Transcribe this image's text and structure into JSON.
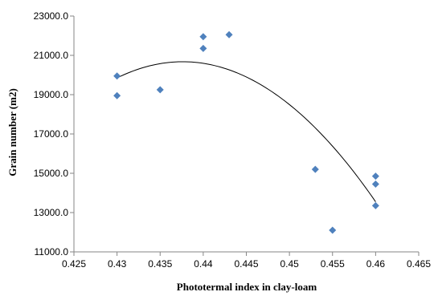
{
  "chart_data": {
    "type": "scatter",
    "title": "",
    "xlabel": "Phototermal index in clay-loam",
    "ylabel": "Grain number (m2)",
    "xlim": [
      0.425,
      0.465
    ],
    "ylim": [
      11000,
      23000
    ],
    "x_ticks": [
      "0.425",
      "0.43",
      "0.435",
      "0.44",
      "0.445",
      "0.45",
      "0.455",
      "0.46",
      "0.465"
    ],
    "x_tick_values": [
      0.425,
      0.43,
      0.435,
      0.44,
      0.445,
      0.45,
      0.455,
      0.46,
      0.465
    ],
    "y_ticks": [
      "11000.0",
      "13000.0",
      "15000.0",
      "17000.0",
      "19000.0",
      "21000.0",
      "23000.0"
    ],
    "y_tick_values": [
      11000,
      13000,
      15000,
      17000,
      19000,
      21000,
      23000
    ],
    "grid": false,
    "legend": "none",
    "marker": "diamond",
    "marker_color": "#4f81bd",
    "trendline_color": "#000000",
    "points": [
      {
        "x": 0.43,
        "y": 19950
      },
      {
        "x": 0.43,
        "y": 18950
      },
      {
        "x": 0.435,
        "y": 19250
      },
      {
        "x": 0.44,
        "y": 21950
      },
      {
        "x": 0.44,
        "y": 21350
      },
      {
        "x": 0.443,
        "y": 22050
      },
      {
        "x": 0.453,
        "y": 15200
      },
      {
        "x": 0.455,
        "y": 12100
      },
      {
        "x": 0.46,
        "y": 14850
      },
      {
        "x": 0.46,
        "y": 14450
      },
      {
        "x": 0.46,
        "y": 13350
      }
    ],
    "trendline": {
      "type": "polynomial",
      "order": 2,
      "x_range": [
        0.43,
        0.46
      ],
      "samples": [
        {
          "x": 0.43,
          "y": 19850
        },
        {
          "x": 0.437,
          "y": 20450
        },
        {
          "x": 0.445,
          "y": 19900
        },
        {
          "x": 0.455,
          "y": 16300
        },
        {
          "x": 0.46,
          "y": 13550
        }
      ]
    }
  }
}
